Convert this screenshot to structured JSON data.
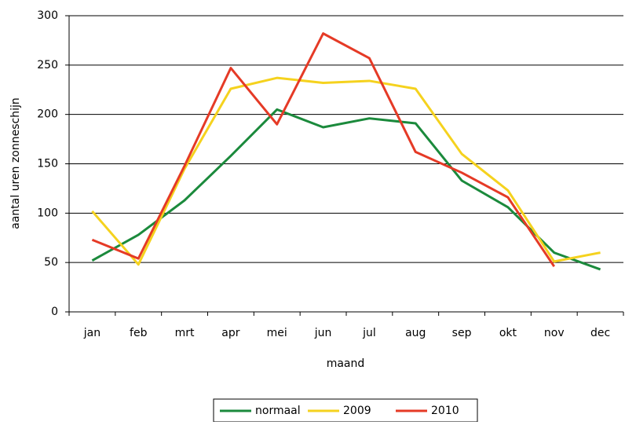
{
  "chart_data": {
    "type": "line",
    "x_label": "maand",
    "y_label": "aantal uren zonneschijn",
    "categories": [
      "jan",
      "feb",
      "mrt",
      "apr",
      "mei",
      "jun",
      "jul",
      "aug",
      "sep",
      "okt",
      "nov",
      "dec"
    ],
    "series": [
      {
        "name": "normaal",
        "color": "#1b8a3c",
        "values": [
          52,
          78,
          113,
          158,
          205,
          187,
          196,
          191,
          133,
          106,
          60,
          43
        ]
      },
      {
        "name": "2009",
        "color": "#f5d21e",
        "values": [
          102,
          48,
          145,
          226,
          237,
          232,
          234,
          226,
          160,
          123,
          51,
          60
        ]
      },
      {
        "name": "2010",
        "color": "#e53a26",
        "values": [
          73,
          54,
          148,
          247,
          190,
          282,
          257,
          162,
          141,
          116,
          46,
          null
        ]
      }
    ],
    "ylim": [
      0,
      300
    ],
    "yticks": [
      0,
      50,
      100,
      150,
      200,
      250,
      300
    ],
    "grid": true,
    "legend": "bottom"
  }
}
